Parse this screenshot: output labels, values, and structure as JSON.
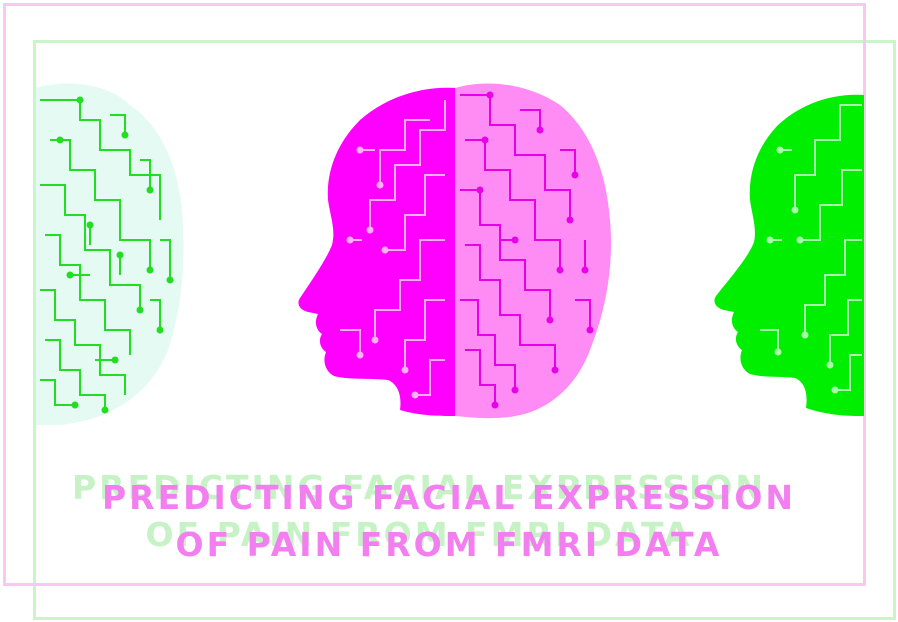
{
  "title": {
    "line1": "PREDICTING FACIAL EXPRESSION",
    "line2": "OF PAIN FROM FMRI DATA"
  },
  "colors": {
    "magenta": "#ff00ff",
    "magenta_light": "#f27ef0",
    "green": "#00ff00",
    "green_light": "#c6f2c6",
    "pink_frame": "#f7c8f0",
    "green_frame": "#c9f5c9"
  },
  "icons": [
    "circuit-brain-head-left",
    "circuit-brain-head-center",
    "circuit-brain-head-right"
  ]
}
